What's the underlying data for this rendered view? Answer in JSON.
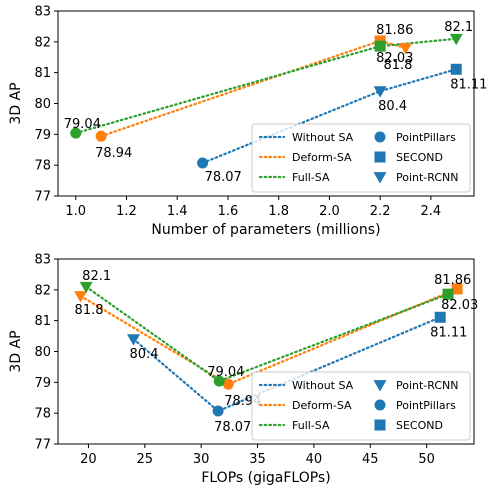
{
  "colors": {
    "Without SA": "#1f77b4",
    "Deform-SA": "#ff7f0e",
    "Full-SA": "#2ca02c"
  },
  "chart_data": [
    {
      "type": "scatter",
      "xlabel": "Number of parameters (millions)",
      "ylabel": "3D AP",
      "xlim": [
        0.93,
        2.57
      ],
      "ylim": [
        77,
        83
      ],
      "xticks": [
        1.0,
        1.2,
        1.4,
        1.6,
        1.8,
        2.0,
        2.2,
        2.4
      ],
      "xtick_labels": [
        "1.0",
        "1.2",
        "1.4",
        "1.6",
        "1.8",
        "2.0",
        "2.2",
        "2.4"
      ],
      "yticks": [
        77,
        78,
        79,
        80,
        81,
        82,
        83
      ],
      "ytick_labels": [
        "77",
        "78",
        "79",
        "80",
        "81",
        "82",
        "83"
      ],
      "grid": false,
      "legend_position": "bottom-right",
      "series": [
        {
          "name": "Without SA",
          "points": [
            {
              "x": 1.5,
              "y": 78.07,
              "model": "PointPillars",
              "label": "78.07"
            },
            {
              "x": 2.2,
              "y": 80.4,
              "model": "Point-RCNN",
              "label": "80.4"
            },
            {
              "x": 2.5,
              "y": 81.11,
              "model": "SECOND",
              "label": "81.11"
            }
          ]
        },
        {
          "name": "Deform-SA",
          "points": [
            {
              "x": 1.1,
              "y": 78.94,
              "model": "PointPillars",
              "label": "78.94"
            },
            {
              "x": 2.2,
              "y": 82.03,
              "model": "SECOND",
              "label": "82.03"
            },
            {
              "x": 2.3,
              "y": 81.8,
              "model": "Point-RCNN",
              "label": "81.8"
            }
          ]
        },
        {
          "name": "Full-SA",
          "points": [
            {
              "x": 1.0,
              "y": 79.04,
              "model": "PointPillars",
              "label": "79.04"
            },
            {
              "x": 2.2,
              "y": 81.86,
              "model": "SECOND",
              "label": "81.86"
            },
            {
              "x": 2.5,
              "y": 82.1,
              "model": "Point-RCNN",
              "label": "82.1"
            }
          ]
        }
      ],
      "legend": {
        "lines": [
          "Without SA",
          "Deform-SA",
          "Full-SA"
        ],
        "markers": [
          {
            "label": "PointPillars",
            "shape": "circle"
          },
          {
            "label": "SECOND",
            "shape": "square"
          },
          {
            "label": "Point-RCNN",
            "shape": "triangle"
          }
        ]
      }
    },
    {
      "type": "scatter",
      "xlabel": "FLOPs (gigaFLOPs)",
      "ylabel": "3D AP",
      "xlim": [
        17.3,
        54.2
      ],
      "ylim": [
        77,
        83
      ],
      "xticks": [
        20,
        25,
        30,
        35,
        40,
        45,
        50
      ],
      "xtick_labels": [
        "20",
        "25",
        "30",
        "35",
        "40",
        "45",
        "50"
      ],
      "yticks": [
        77,
        78,
        79,
        80,
        81,
        82,
        83
      ],
      "ytick_labels": [
        "77",
        "78",
        "79",
        "80",
        "81",
        "82",
        "83"
      ],
      "grid": false,
      "legend_position": "bottom-right",
      "series": [
        {
          "name": "Without SA",
          "points": [
            {
              "x": 24.0,
              "y": 80.4,
              "model": "Point-RCNN",
              "label": "80.4"
            },
            {
              "x": 31.5,
              "y": 78.07,
              "model": "PointPillars",
              "label": "78.07"
            },
            {
              "x": 51.2,
              "y": 81.11,
              "model": "SECOND",
              "label": "81.11"
            }
          ]
        },
        {
          "name": "Deform-SA",
          "points": [
            {
              "x": 19.3,
              "y": 81.8,
              "model": "Point-RCNN",
              "label": "81.8"
            },
            {
              "x": 32.4,
              "y": 78.94,
              "model": "PointPillars",
              "label": "78.94"
            },
            {
              "x": 52.7,
              "y": 82.03,
              "model": "SECOND",
              "label": "82.03"
            }
          ]
        },
        {
          "name": "Full-SA",
          "points": [
            {
              "x": 19.8,
              "y": 82.1,
              "model": "Point-RCNN",
              "label": "82.1"
            },
            {
              "x": 31.6,
              "y": 79.04,
              "model": "PointPillars",
              "label": "79.04"
            },
            {
              "x": 51.9,
              "y": 81.86,
              "model": "SECOND",
              "label": "81.86"
            }
          ]
        }
      ],
      "legend": {
        "lines": [
          "Without SA",
          "Deform-SA",
          "Full-SA"
        ],
        "markers": [
          {
            "label": "Point-RCNN",
            "shape": "triangle"
          },
          {
            "label": "PointPillars",
            "shape": "circle"
          },
          {
            "label": "SECOND",
            "shape": "square"
          }
        ]
      }
    }
  ]
}
